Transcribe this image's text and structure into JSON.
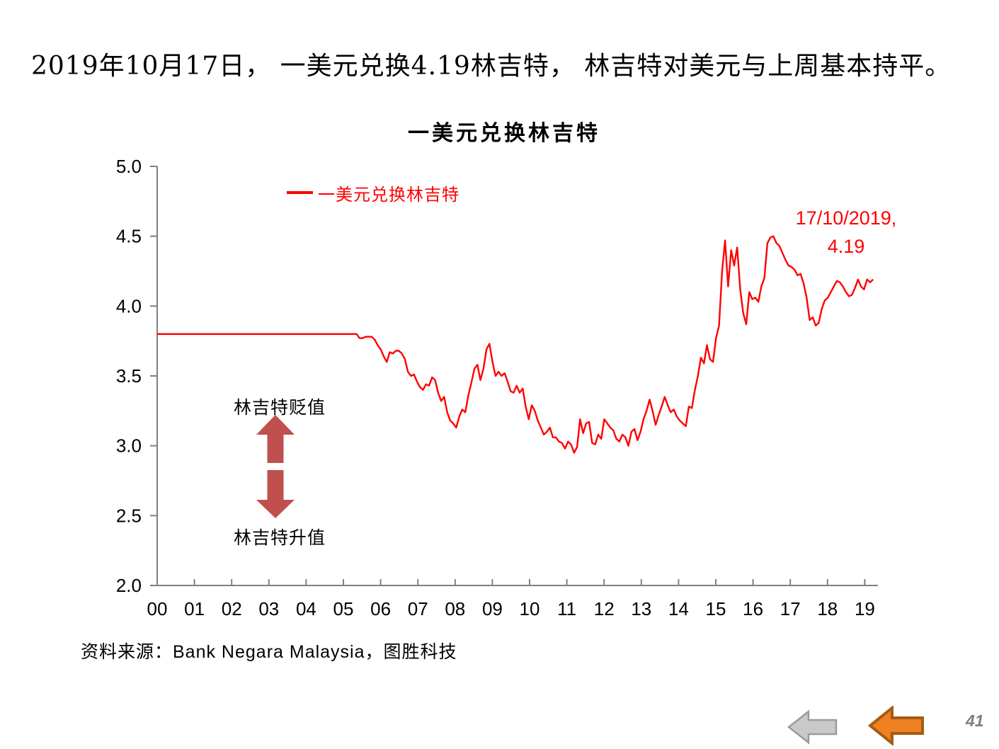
{
  "page": {
    "headline": "2019年10月17日， 一美元兑换4.19林吉特， 林吉特对美元与上周基本持平。",
    "source": "资料来源：Bank Negara Malaysia，图胜科技",
    "page_number": "41"
  },
  "annotations": {
    "depreciate_label": "林吉特贬值",
    "appreciate_label": "林吉特升值",
    "point_label_line1": "17/10/2019,",
    "point_label_line2": "4.19"
  },
  "colors": {
    "line": "#FF0000",
    "annotation_text": "#FF0000",
    "axis": "#808080",
    "tick_text": "#000000",
    "trend_arrow": "#C0504D",
    "nav_arrow_gray_fill": "#C9C9C9",
    "nav_arrow_gray_stroke": "#9B9B9B",
    "nav_arrow_orange_fill": "#EF8122",
    "nav_arrow_orange_stroke": "#A55C11",
    "page_number": "#7F7F7F"
  },
  "chart_data": {
    "type": "line",
    "title": "一美元兑换林吉特",
    "legend_position": "top-left-inside",
    "grid": false,
    "ylim": [
      2.0,
      5.0
    ],
    "ytick_labels": [
      "2.0",
      "2.5",
      "3.0",
      "3.5",
      "4.0",
      "4.5",
      "5.0"
    ],
    "xtick_labels": [
      "00",
      "01",
      "02",
      "03",
      "04",
      "05",
      "06",
      "07",
      "08",
      "09",
      "10",
      "11",
      "12",
      "13",
      "14",
      "15",
      "16",
      "17",
      "18",
      "19"
    ],
    "x_start_year": 2000,
    "x_interval_months": 1,
    "x_end": "2019-10",
    "annotation": {
      "text": "17/10/2019, 4.19",
      "x": "2019-10",
      "y": 4.19
    },
    "series": [
      {
        "name": "一美元兑换林吉特",
        "color": "#FF0000",
        "values": [
          3.8,
          3.8,
          3.8,
          3.8,
          3.8,
          3.8,
          3.8,
          3.8,
          3.8,
          3.8,
          3.8,
          3.8,
          3.8,
          3.8,
          3.8,
          3.8,
          3.8,
          3.8,
          3.8,
          3.8,
          3.8,
          3.8,
          3.8,
          3.8,
          3.8,
          3.8,
          3.8,
          3.8,
          3.8,
          3.8,
          3.8,
          3.8,
          3.8,
          3.8,
          3.8,
          3.8,
          3.8,
          3.8,
          3.8,
          3.8,
          3.8,
          3.8,
          3.8,
          3.8,
          3.8,
          3.8,
          3.8,
          3.8,
          3.8,
          3.8,
          3.8,
          3.8,
          3.8,
          3.8,
          3.8,
          3.8,
          3.8,
          3.8,
          3.8,
          3.8,
          3.8,
          3.8,
          3.8,
          3.8,
          3.8,
          3.8,
          3.8,
          3.77,
          3.77,
          3.78,
          3.78,
          3.78,
          3.76,
          3.72,
          3.69,
          3.64,
          3.6,
          3.67,
          3.66,
          3.68,
          3.68,
          3.66,
          3.62,
          3.53,
          3.5,
          3.51,
          3.46,
          3.42,
          3.4,
          3.44,
          3.43,
          3.49,
          3.47,
          3.38,
          3.32,
          3.35,
          3.24,
          3.18,
          3.16,
          3.13,
          3.21,
          3.26,
          3.24,
          3.36,
          3.45,
          3.55,
          3.58,
          3.47,
          3.55,
          3.69,
          3.73,
          3.6,
          3.5,
          3.53,
          3.5,
          3.52,
          3.46,
          3.39,
          3.38,
          3.43,
          3.38,
          3.41,
          3.28,
          3.19,
          3.29,
          3.25,
          3.18,
          3.13,
          3.08,
          3.1,
          3.13,
          3.06,
          3.06,
          3.03,
          3.02,
          2.98,
          3.03,
          3.01,
          2.95,
          2.99,
          3.19,
          3.09,
          3.16,
          3.17,
          3.02,
          3.01,
          3.08,
          3.05,
          3.19,
          3.16,
          3.13,
          3.11,
          3.05,
          3.03,
          3.08,
          3.06,
          3.0,
          3.1,
          3.12,
          3.04,
          3.1,
          3.19,
          3.25,
          3.33,
          3.25,
          3.15,
          3.22,
          3.28,
          3.35,
          3.29,
          3.24,
          3.26,
          3.21,
          3.18,
          3.16,
          3.14,
          3.28,
          3.27,
          3.4,
          3.5,
          3.63,
          3.59,
          3.72,
          3.62,
          3.6,
          3.77,
          3.86,
          4.25,
          4.47,
          4.14,
          4.4,
          4.29,
          4.42,
          4.12,
          3.95,
          3.87,
          4.1,
          4.05,
          4.06,
          4.03,
          4.14,
          4.2,
          4.45,
          4.49,
          4.5,
          4.45,
          4.43,
          4.38,
          4.33,
          4.29,
          4.28,
          4.26,
          4.22,
          4.23,
          4.16,
          4.06,
          3.9,
          3.92,
          3.86,
          3.88,
          3.98,
          4.04,
          4.06,
          4.1,
          4.14,
          4.18,
          4.17,
          4.14,
          4.1,
          4.07,
          4.08,
          4.13,
          4.19,
          4.14,
          4.12,
          4.19,
          4.17,
          4.19
        ]
      }
    ]
  }
}
